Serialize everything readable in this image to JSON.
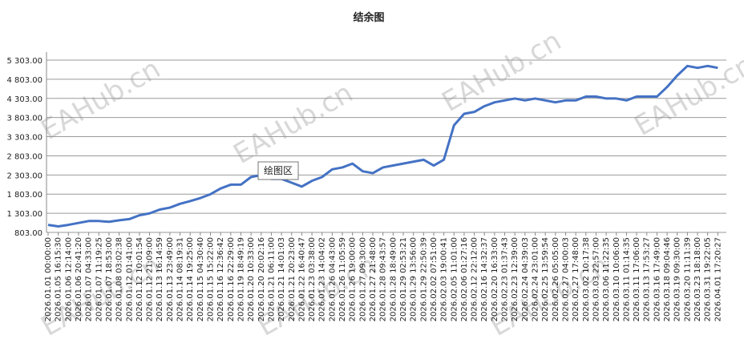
{
  "chart_data": {
    "type": "line",
    "title": "结余图",
    "tooltip": "绘图区",
    "watermark": "EAHub.cn",
    "categories": [
      "2026.01.01 00:00:00",
      "2026.01.05 16:15:30",
      "2026.01.06 12:14:00",
      "2026.01.06 20:41:20",
      "2026.01.07 04:33:00",
      "2026.01.07 11:19:25",
      "2026.01.07 18:53:00",
      "2026.01.08 03:02:38",
      "2026.01.12 01:41:00",
      "2026.01.12 10:01:54",
      "2026.01.12 21:09:00",
      "2026.01.13 16:14:59",
      "2026.01.13 23:49:00",
      "2026.01.14 08:19:31",
      "2026.01.14 19:25:00",
      "2026.01.15 04:30:40",
      "2026.01.15 15:22:00",
      "2026.01.16 12:36:42",
      "2026.01.16 22:29:00",
      "2026.01.19 18:49:19",
      "2026.01.20 10:33:00",
      "2026.01.20 20:02:16",
      "2026.01.21 06:11:00",
      "2026.01.21 14:01:03",
      "2026.01.21 20:23:00",
      "2026.01.22 16:40:47",
      "2026.01.23 03:38:00",
      "2026.01.23 14:04:02",
      "2026.01.26 04:43:00",
      "2026.01.26 11:05:59",
      "2026.01.26 19:00:00",
      "2026.01.27 09:30:00",
      "2026.01.27 21:48:00",
      "2026.01.28 09:43:57",
      "2026.01.28 18:49:00",
      "2026.01.29 02:53:21",
      "2026.01.29 13:56:00",
      "2026.01.29 22:50:39",
      "2026.02.02 07:51:00",
      "2026.02.03 19:00:41",
      "2026.02.05 11:01:00",
      "2026.02.06 01:27:16",
      "2026.02.12 22:12:00",
      "2026.02.16 14:32:37",
      "2026.02.20 16:33:00",
      "2026.02.23 01:37:43",
      "2026.02.23 12:39:00",
      "2026.02.24 04:39:03",
      "2026.02.24 23:01:00",
      "2026.02.25 13:59:54",
      "2026.02.26 05:05:00",
      "2026.02.27 04:00:03",
      "2026.02.27 17:48:00",
      "2026.03.02 10:17:38",
      "2026.03.03 22:57:00",
      "2026.03.06 11:22:35",
      "2026.03.10 10:06:00",
      "2026.03.11 01:14:35",
      "2026.03.11 17:06:00",
      "2026.03.13 17:53:27",
      "2026.03.16 17:49:00",
      "2026.03.18 09:04:46",
      "2026.03.19 09:30:00",
      "2026.03.20 11:11:39",
      "2026.03.23 18:18:00",
      "2026.03.31 19:22:05",
      "2026.04.01 17:20:27"
    ],
    "series": [
      {
        "color": "#4472c4",
        "values": [
          1000,
          960,
          1000,
          1050,
          1100,
          1100,
          1080,
          1120,
          1150,
          1250,
          1300,
          1400,
          1450,
          1550,
          1620,
          1700,
          1800,
          1950,
          2050,
          2050,
          2250,
          2300,
          2200,
          2200,
          2100,
          2000,
          2150,
          2250,
          2450,
          2500,
          2600,
          2400,
          2350,
          2500,
          2550,
          2600,
          2650,
          2700,
          2550,
          2700,
          3600,
          3900,
          3950,
          4100,
          4200,
          4250,
          4300,
          4250,
          4300,
          4250,
          4200,
          4250,
          4250,
          4350,
          4350,
          4300,
          4300,
          4250,
          4350,
          4350,
          4350,
          4600,
          4900,
          5150,
          5100,
          5150,
          5100
        ]
      }
    ],
    "ylim": [
      803,
      5303
    ],
    "yticks": [
      {
        "value": 803,
        "label": "803.00"
      },
      {
        "value": 1303,
        "label": "1 303.00"
      },
      {
        "value": 1803,
        "label": "1 803.00"
      },
      {
        "value": 2303,
        "label": "2 303.00"
      },
      {
        "value": 2803,
        "label": "2 803.00"
      },
      {
        "value": 3303,
        "label": "3 303.00"
      },
      {
        "value": 3803,
        "label": "3 803.00"
      },
      {
        "value": 4303,
        "label": "4 303.00"
      },
      {
        "value": 4803,
        "label": "4 803.00"
      },
      {
        "value": 5303,
        "label": "5 303.00"
      }
    ],
    "grid": true
  }
}
